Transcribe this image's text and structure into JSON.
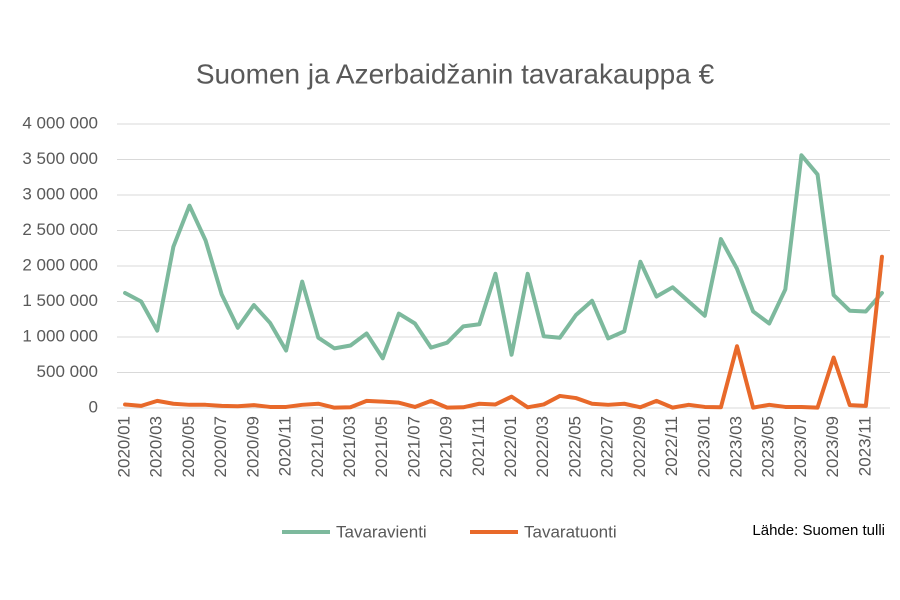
{
  "chart_data": {
    "type": "line",
    "title": "Suomen ja Azerbaidžanin tavarakauppa €",
    "source": "Lähde: Suomen tulli",
    "categories": [
      "2020/01",
      null,
      "2020/03",
      null,
      "2020/05",
      null,
      "2020/07",
      null,
      "2020/09",
      null,
      "2020/11",
      null,
      "2021/01",
      null,
      "2021/03",
      null,
      "2021/05",
      null,
      "2021/07",
      null,
      "2021/09",
      null,
      "2021/11",
      null,
      "2022/01",
      null,
      "2022/03",
      null,
      "2022/05",
      null,
      "2022/07",
      null,
      "2022/09",
      null,
      "2022/11",
      null,
      "2023/01",
      null,
      "2023/03",
      null,
      "2023/05",
      null,
      "2023/07",
      null,
      "2023/09",
      null,
      "2023/11",
      null
    ],
    "series": [
      {
        "name": "Tavaravienti",
        "color": "#7db99d",
        "values": [
          1620000,
          1500000,
          1090000,
          2270000,
          2850000,
          2360000,
          1600000,
          1130000,
          1450000,
          1200000,
          810000,
          1780000,
          990000,
          840000,
          880000,
          1050000,
          700000,
          1330000,
          1190000,
          850000,
          920000,
          1150000,
          1180000,
          1890000,
          750000,
          1890000,
          1010000,
          990000,
          1310000,
          1510000,
          980000,
          1080000,
          2060000,
          1570000,
          1700000,
          1500000,
          1300000,
          2380000,
          1960000,
          1360000,
          1190000,
          1670000,
          3560000,
          3290000,
          1590000,
          1370000,
          1360000,
          1620000
        ]
      },
      {
        "name": "Tavaratuonti",
        "color": "#e8692a",
        "values": [
          50000,
          30000,
          100000,
          60000,
          45000,
          45000,
          30000,
          25000,
          40000,
          15000,
          15000,
          45000,
          60000,
          5000,
          10000,
          100000,
          90000,
          75000,
          15000,
          100000,
          5000,
          10000,
          60000,
          50000,
          160000,
          10000,
          50000,
          170000,
          140000,
          60000,
          45000,
          60000,
          10000,
          100000,
          5000,
          45000,
          15000,
          10000,
          870000,
          5000,
          45000,
          15000,
          15000,
          5000,
          710000,
          40000,
          30000,
          2130000
        ]
      }
    ],
    "ylim": [
      0,
      4000000
    ],
    "yticks": [
      0,
      {
        "value": 500000,
        "label": "500 000"
      },
      {
        "value": 1000000,
        "label": "1 000 000"
      },
      {
        "value": 1500000,
        "label": "1 500 000"
      },
      {
        "value": 2000000,
        "label": "2 000 000"
      },
      {
        "value": 2500000,
        "label": "2 500 000"
      },
      {
        "value": 3000000,
        "label": "3 000 000"
      },
      {
        "value": 3500000,
        "label": "3 500 000"
      },
      {
        "value": 4000000,
        "label": "4 000 000"
      }
    ],
    "grid": true
  }
}
